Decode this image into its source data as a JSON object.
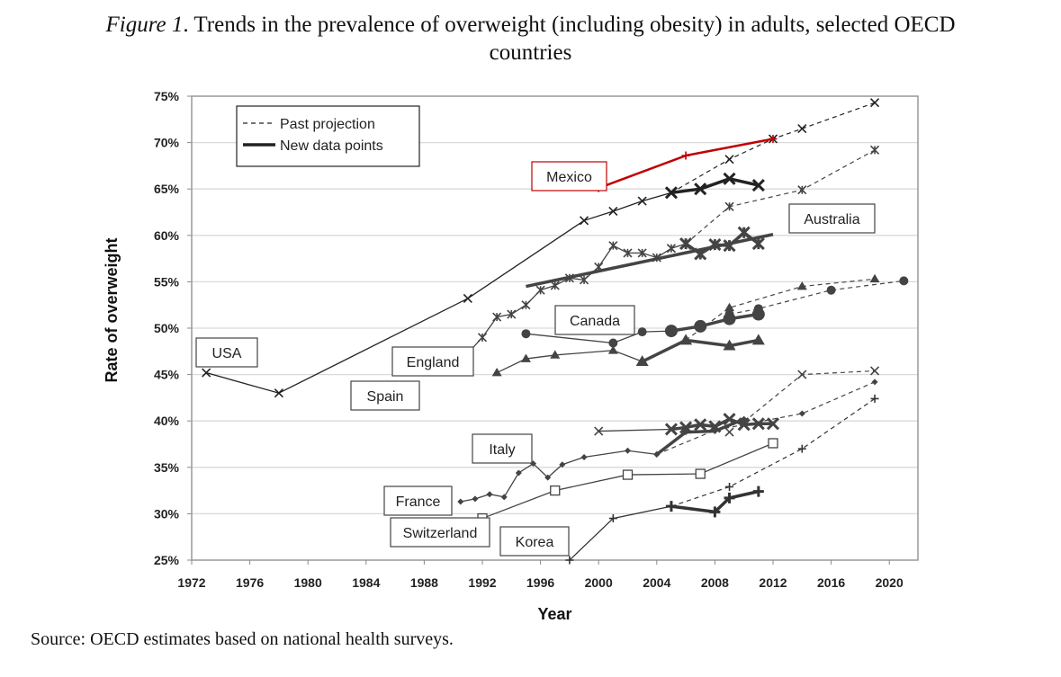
{
  "title_prefix": "Figure 1",
  "title_text": ". Trends in the prevalence of overweight (including obesity) in adults, selected OECD",
  "title_line2": "countries",
  "source": "Source: OECD estimates based on national health surveys.",
  "chart_data": {
    "type": "line",
    "xlabel": "Year",
    "ylabel": "Rate of overweight",
    "xlim": [
      1972,
      2022
    ],
    "ylim": [
      25,
      75
    ],
    "xticks": [
      "1972",
      "1976",
      "1980",
      "1984",
      "1988",
      "1992",
      "1996",
      "2000",
      "2004",
      "2008",
      "2012",
      "2016",
      "2020"
    ],
    "yticks": [
      "25%",
      "30%",
      "35%",
      "40%",
      "45%",
      "50%",
      "55%",
      "60%",
      "65%",
      "70%",
      "75%"
    ],
    "grid": true,
    "legend": {
      "position": "top-left",
      "entries": [
        "Past projection",
        "New data points"
      ]
    },
    "series": [
      {
        "name": "USA",
        "marker": "x",
        "color": "#222222",
        "segments": [
          {
            "style": "thin",
            "points": [
              [
                1973,
                45.2
              ],
              [
                1978,
                43
              ],
              [
                1991,
                53.2
              ],
              [
                1999,
                61.6
              ],
              [
                2001,
                62.6
              ],
              [
                2003,
                63.7
              ],
              [
                2005,
                64.6
              ]
            ]
          },
          {
            "style": "bold",
            "points": [
              [
                2005,
                64.6
              ],
              [
                2007,
                65.0
              ],
              [
                2009,
                66.1
              ],
              [
                2011,
                65.4
              ]
            ]
          },
          {
            "style": "dash",
            "points": [
              [
                2005,
                64.6
              ],
              [
                2009,
                68.2
              ],
              [
                2012,
                70.4
              ],
              [
                2014,
                71.5
              ],
              [
                2019,
                74.3
              ]
            ]
          }
        ]
      },
      {
        "name": "Mexico",
        "marker": "plus",
        "color": "#c00000",
        "segments": [
          {
            "style": "bold",
            "points": [
              [
                2000,
                65.1
              ],
              [
                2006,
                68.6
              ],
              [
                2012,
                70.4
              ]
            ]
          }
        ]
      },
      {
        "name": "England",
        "marker": "star",
        "color": "#444444",
        "segments": [
          {
            "style": "thin",
            "points": [
              [
                1991,
                47.3
              ],
              [
                1992,
                49
              ],
              [
                1993,
                51.2
              ],
              [
                1994,
                51.5
              ],
              [
                1995,
                52.5
              ],
              [
                1996,
                54.1
              ],
              [
                1997,
                54.6
              ],
              [
                1998,
                55.4
              ],
              [
                1999,
                55.2
              ],
              [
                2000,
                56.6
              ],
              [
                2001,
                58.9
              ],
              [
                2002,
                58.1
              ],
              [
                2003,
                58.1
              ],
              [
                2004,
                57.6
              ],
              [
                2005,
                58.6
              ],
              [
                2006,
                59.1
              ]
            ]
          },
          {
            "style": "bold",
            "points": [
              [
                2006,
                59.1
              ],
              [
                2007,
                58
              ],
              [
                2008,
                59
              ],
              [
                2009,
                58.9
              ],
              [
                2010,
                60.3
              ],
              [
                2011,
                59.1
              ]
            ]
          },
          {
            "style": "dash",
            "points": [
              [
                2006,
                59.1
              ],
              [
                2009,
                63.1
              ],
              [
                2014,
                64.9
              ],
              [
                2019,
                69.2
              ]
            ]
          }
        ]
      },
      {
        "name": "Australia",
        "marker": "none",
        "color": "#444444",
        "segments": [
          {
            "style": "bold",
            "points": [
              [
                1995,
                54.5
              ],
              [
                2012,
                60.1
              ]
            ]
          }
        ]
      },
      {
        "name": "Canada",
        "marker": "circle",
        "color": "#444444",
        "segments": [
          {
            "style": "thin",
            "points": [
              [
                1995,
                49.4
              ],
              [
                2001,
                48.4
              ],
              [
                2003,
                49.6
              ],
              [
                2005,
                49.7
              ]
            ]
          },
          {
            "style": "bold",
            "points": [
              [
                2005,
                49.7
              ],
              [
                2007,
                50.2
              ],
              [
                2009,
                51
              ],
              [
                2011,
                51.5
              ]
            ]
          },
          {
            "style": "dash",
            "points": [
              [
                2009,
                51.5
              ],
              [
                2011,
                52.1
              ],
              [
                2016,
                54.1
              ],
              [
                2021,
                55.1
              ]
            ]
          }
        ]
      },
      {
        "name": "Spain",
        "marker": "triangle",
        "color": "#444444",
        "segments": [
          {
            "style": "thin",
            "points": [
              [
                1993,
                45.2
              ],
              [
                1995,
                46.7
              ],
              [
                1997,
                47.1
              ],
              [
                2001,
                47.6
              ],
              [
                2003,
                46.4
              ]
            ]
          },
          {
            "style": "bold",
            "points": [
              [
                2003,
                46.4
              ],
              [
                2006,
                48.7
              ],
              [
                2009,
                48.1
              ],
              [
                2011,
                48.7
              ]
            ]
          },
          {
            "style": "dash",
            "points": [
              [
                2006,
                48.7
              ],
              [
                2009,
                52.2
              ],
              [
                2014,
                54.5
              ],
              [
                2019,
                55.3
              ]
            ]
          }
        ]
      },
      {
        "name": "Italy",
        "marker": "x",
        "color": "#444444",
        "segments": [
          {
            "style": "thin",
            "points": [
              [
                2000,
                38.9
              ],
              [
                2005,
                39.1
              ]
            ]
          },
          {
            "style": "bold",
            "points": [
              [
                2005,
                39.1
              ],
              [
                2006,
                39.3
              ],
              [
                2007,
                39.6
              ],
              [
                2008,
                39.4
              ],
              [
                2009,
                40.2
              ],
              [
                2010,
                39.6
              ],
              [
                2011,
                39.7
              ],
              [
                2012,
                39.7
              ]
            ]
          },
          {
            "style": "dash",
            "points": [
              [
                2010,
                39.9
              ],
              [
                2014,
                45
              ],
              [
                2019,
                45.4
              ]
            ]
          },
          {
            "style": "none",
            "points": [
              [
                2009,
                38.8
              ]
            ]
          }
        ]
      },
      {
        "name": "France",
        "marker": "diamond",
        "color": "#444444",
        "segments": [
          {
            "style": "thin",
            "points": [
              [
                1990.5,
                31.3
              ],
              [
                1991.5,
                31.6
              ],
              [
                1992.5,
                32.1
              ],
              [
                1993.5,
                31.8
              ],
              [
                1994.5,
                34.4
              ],
              [
                1995.5,
                35.4
              ],
              [
                1996.5,
                33.9
              ],
              [
                1997.5,
                35.3
              ],
              [
                1999,
                36.1
              ],
              [
                2002,
                36.8
              ],
              [
                2004,
                36.4
              ]
            ]
          },
          {
            "style": "bold",
            "points": [
              [
                2004,
                36.4
              ],
              [
                2006,
                38.8
              ],
              [
                2008,
                38.9
              ],
              [
                2010,
                40.2
              ]
            ]
          },
          {
            "style": "dash",
            "points": [
              [
                2004,
                36.4
              ],
              [
                2008,
                39
              ],
              [
                2014,
                40.8
              ],
              [
                2019,
                44.2
              ]
            ]
          }
        ]
      },
      {
        "name": "Switzerland",
        "marker": "square",
        "color": "#444444",
        "segments": [
          {
            "style": "thin",
            "points": [
              [
                1992,
                29.5
              ],
              [
                1997,
                32.5
              ],
              [
                2002,
                34.2
              ],
              [
                2007,
                34.3
              ],
              [
                2012,
                37.6
              ]
            ]
          }
        ]
      },
      {
        "name": "Korea",
        "marker": "plus",
        "color": "#333333",
        "segments": [
          {
            "style": "thin",
            "points": [
              [
                1998,
                25
              ],
              [
                2001,
                29.5
              ],
              [
                2005,
                30.8
              ]
            ]
          },
          {
            "style": "bold",
            "points": [
              [
                2005,
                30.8
              ],
              [
                2008,
                30.2
              ],
              [
                2009,
                31.7
              ],
              [
                2011,
                32.4
              ]
            ]
          },
          {
            "style": "dash",
            "points": [
              [
                2005,
                30.8
              ],
              [
                2009,
                32.9
              ],
              [
                2014,
                37
              ],
              [
                2019,
                42.4
              ]
            ]
          }
        ]
      }
    ]
  }
}
